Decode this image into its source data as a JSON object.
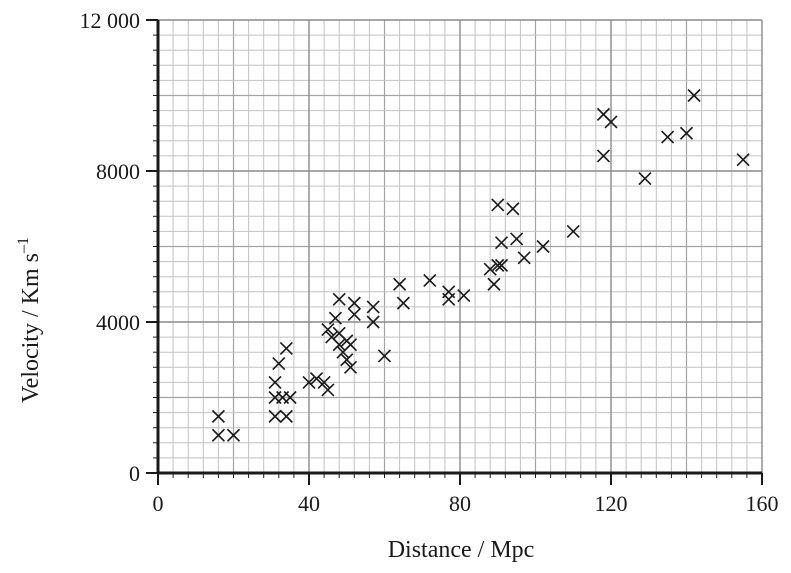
{
  "chart_data": {
    "type": "scatter",
    "title": "",
    "xlabel": "Distance / Mpc",
    "ylabel": "Velocity / Km s",
    "ylabel_sup": "–1",
    "xlim": [
      0,
      160
    ],
    "ylim": [
      0,
      12000
    ],
    "xticks": [
      0,
      40,
      80,
      120,
      160
    ],
    "yticks": [
      0,
      4000,
      8000,
      12000
    ],
    "xtick_labels": [
      "0",
      "40",
      "80",
      "120",
      "160"
    ],
    "ytick_labels": [
      "0",
      "4000",
      "8000",
      "12 000"
    ],
    "grid": true,
    "marker": "x",
    "series": [
      {
        "points": [
          [
            16,
            1500
          ],
          [
            16,
            1000
          ],
          [
            20,
            1000
          ],
          [
            31,
            2400
          ],
          [
            31,
            1500
          ],
          [
            31,
            2000
          ],
          [
            32,
            2900
          ],
          [
            33,
            2000
          ],
          [
            34,
            3300
          ],
          [
            34,
            1500
          ],
          [
            35,
            2000
          ],
          [
            40,
            2400
          ],
          [
            42,
            2500
          ],
          [
            44,
            2400
          ],
          [
            45,
            2200
          ],
          [
            45,
            3800
          ],
          [
            46,
            3600
          ],
          [
            47,
            4100
          ],
          [
            48,
            4600
          ],
          [
            48,
            3700
          ],
          [
            48,
            3400
          ],
          [
            49,
            3200
          ],
          [
            50,
            3500
          ],
          [
            50,
            3000
          ],
          [
            51,
            2800
          ],
          [
            51,
            3400
          ],
          [
            52,
            4500
          ],
          [
            52,
            4200
          ],
          [
            57,
            4400
          ],
          [
            57,
            4000
          ],
          [
            60,
            3100
          ],
          [
            64,
            5000
          ],
          [
            65,
            4500
          ],
          [
            72,
            5100
          ],
          [
            77,
            4800
          ],
          [
            77,
            4600
          ],
          [
            81,
            4700
          ],
          [
            88,
            5400
          ],
          [
            89,
            5000
          ],
          [
            90,
            5500
          ],
          [
            90,
            7100
          ],
          [
            91,
            6100
          ],
          [
            91,
            5500
          ],
          [
            94,
            7000
          ],
          [
            95,
            6200
          ],
          [
            97,
            5700
          ],
          [
            102,
            6000
          ],
          [
            110,
            6400
          ],
          [
            118,
            9500
          ],
          [
            118,
            8400
          ],
          [
            120,
            9300
          ],
          [
            129,
            7800
          ],
          [
            135,
            8900
          ],
          [
            140,
            9000
          ],
          [
            142,
            10000
          ],
          [
            155,
            8300
          ]
        ]
      }
    ]
  }
}
